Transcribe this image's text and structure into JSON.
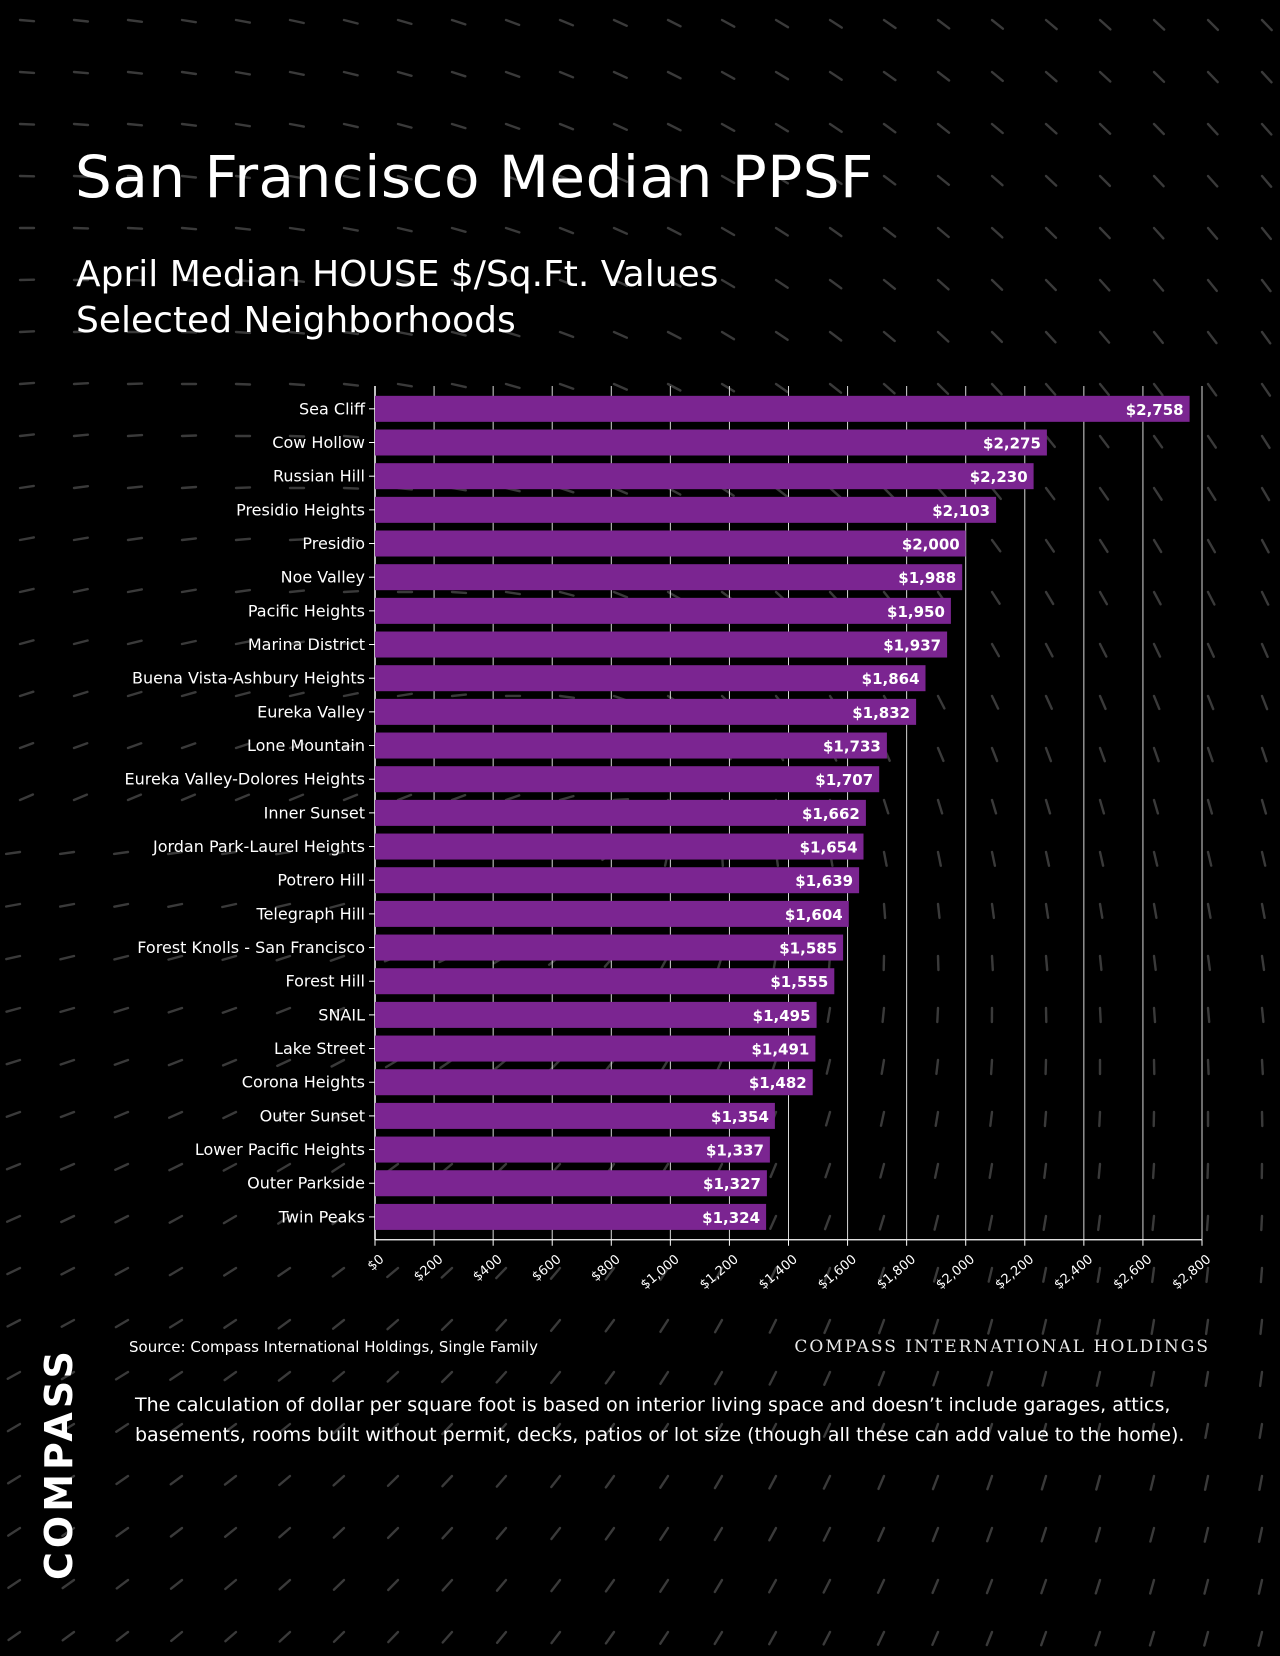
{
  "header": {
    "title": "San Francisco Median PPSF",
    "subtitle_line1": "April Median HOUSE $/Sq.Ft. Values",
    "subtitle_line2": "Selected Neighborhoods"
  },
  "chart_data": {
    "type": "bar",
    "orientation": "horizontal",
    "categories": [
      "Sea Cliff",
      "Cow Hollow",
      "Russian Hill",
      "Presidio Heights",
      "Presidio",
      "Noe Valley",
      "Pacific Heights",
      "Marina District",
      "Buena Vista-Ashbury Heights",
      "Eureka Valley",
      "Lone Mountain",
      "Eureka Valley-Dolores Heights",
      "Inner Sunset",
      "Jordan Park-Laurel Heights",
      "Potrero Hill",
      "Telegraph Hill",
      "Forest Knolls - San Francisco",
      "Forest Hill",
      "SNAIL",
      "Lake Street",
      "Corona Heights",
      "Outer Sunset",
      "Lower Pacific Heights",
      "Outer Parkside",
      "Twin Peaks"
    ],
    "values": [
      2758,
      2275,
      2230,
      2103,
      2000,
      1988,
      1950,
      1937,
      1864,
      1832,
      1733,
      1707,
      1662,
      1654,
      1639,
      1604,
      1585,
      1555,
      1495,
      1491,
      1482,
      1354,
      1337,
      1327,
      1324
    ],
    "value_labels": [
      "$2,758",
      "$2,275",
      "$2,230",
      "$2,103",
      "$2,000",
      "$1,988",
      "$1,950",
      "$1,937",
      "$1,864",
      "$1,832",
      "$1,733",
      "$1,707",
      "$1,662",
      "$1,654",
      "$1,639",
      "$1,604",
      "$1,585",
      "$1,555",
      "$1,495",
      "$1,491",
      "$1,482",
      "$1,354",
      "$1,337",
      "$1,327",
      "$1,324"
    ],
    "x_ticks": [
      "$0",
      "$200",
      "$400",
      "$600",
      "$800",
      "$1,000",
      "$1,200",
      "$1,400",
      "$1,600",
      "$1,800",
      "$2,000",
      "$2,200",
      "$2,400",
      "$2,600",
      "$2,800"
    ],
    "xlim": [
      0,
      2800
    ],
    "grid": true,
    "bar_color": "#7b2591",
    "title": "",
    "xlabel": "",
    "ylabel": ""
  },
  "footer": {
    "source": "Source: Compass International Holdings, Single Family",
    "brand_right": "COMPASS INTERNATIONAL HOLDINGS",
    "disclaimer": "The calculation of dollar per square foot is based on interior living space and doesn’t include garages, attics, basements, rooms built without permit, decks, patios or lot size (though all these can add value to the home).",
    "logo": "COMPASS"
  }
}
